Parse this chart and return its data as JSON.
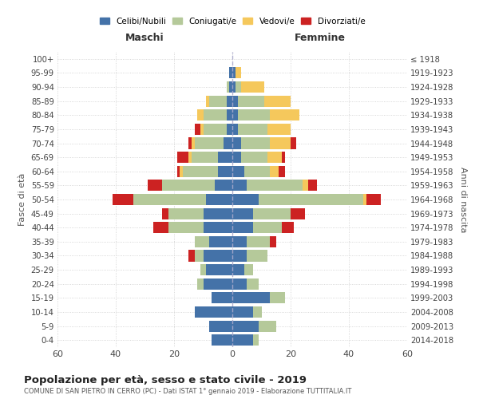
{
  "age_groups": [
    "0-4",
    "5-9",
    "10-14",
    "15-19",
    "20-24",
    "25-29",
    "30-34",
    "35-39",
    "40-44",
    "45-49",
    "50-54",
    "55-59",
    "60-64",
    "65-69",
    "70-74",
    "75-79",
    "80-84",
    "85-89",
    "90-94",
    "95-99",
    "100+"
  ],
  "birth_years": [
    "2014-2018",
    "2009-2013",
    "2004-2008",
    "1999-2003",
    "1994-1998",
    "1989-1993",
    "1984-1988",
    "1979-1983",
    "1974-1978",
    "1969-1973",
    "1964-1968",
    "1959-1963",
    "1954-1958",
    "1949-1953",
    "1944-1948",
    "1939-1943",
    "1934-1938",
    "1929-1933",
    "1924-1928",
    "1919-1923",
    "≤ 1918"
  ],
  "male": {
    "celibi": [
      7,
      8,
      13,
      7,
      10,
      9,
      10,
      8,
      10,
      10,
      9,
      6,
      5,
      5,
      3,
      2,
      2,
      2,
      1,
      1,
      0
    ],
    "coniugati": [
      0,
      0,
      0,
      0,
      2,
      2,
      3,
      5,
      12,
      12,
      25,
      18,
      12,
      9,
      10,
      8,
      8,
      6,
      1,
      0,
      0
    ],
    "vedovi": [
      0,
      0,
      0,
      0,
      0,
      0,
      0,
      0,
      0,
      0,
      0,
      0,
      1,
      1,
      1,
      1,
      2,
      1,
      0,
      0,
      0
    ],
    "divorziati": [
      0,
      0,
      0,
      0,
      0,
      0,
      2,
      0,
      5,
      2,
      7,
      5,
      1,
      4,
      1,
      2,
      0,
      0,
      0,
      0,
      0
    ]
  },
  "female": {
    "nubili": [
      7,
      9,
      7,
      13,
      5,
      4,
      5,
      5,
      7,
      7,
      9,
      5,
      4,
      3,
      3,
      2,
      2,
      2,
      1,
      1,
      0
    ],
    "coniugate": [
      2,
      6,
      3,
      5,
      4,
      3,
      7,
      8,
      10,
      13,
      36,
      19,
      9,
      9,
      10,
      10,
      11,
      9,
      2,
      0,
      0
    ],
    "vedove": [
      0,
      0,
      0,
      0,
      0,
      0,
      0,
      0,
      0,
      0,
      1,
      2,
      3,
      5,
      7,
      8,
      10,
      9,
      8,
      2,
      0
    ],
    "divorziate": [
      0,
      0,
      0,
      0,
      0,
      0,
      0,
      2,
      4,
      5,
      5,
      3,
      2,
      1,
      2,
      0,
      0,
      0,
      0,
      0,
      0
    ]
  },
  "colors": {
    "celibi": "#4472a8",
    "coniugati": "#b5c99a",
    "vedovi": "#f5c85c",
    "divorziati": "#cc2222"
  },
  "title": "Popolazione per età, sesso e stato civile - 2019",
  "subtitle": "COMUNE DI SAN PIETRO IN CERRO (PC) - Dati ISTAT 1° gennaio 2019 - Elaborazione TUTTITALIA.IT",
  "xlabel_left": "Maschi",
  "xlabel_right": "Femmine",
  "ylabel_left": "Fasce di età",
  "ylabel_right": "Anni di nascita",
  "xlim": 60,
  "background_color": "#ffffff",
  "grid_color": "#cccccc"
}
